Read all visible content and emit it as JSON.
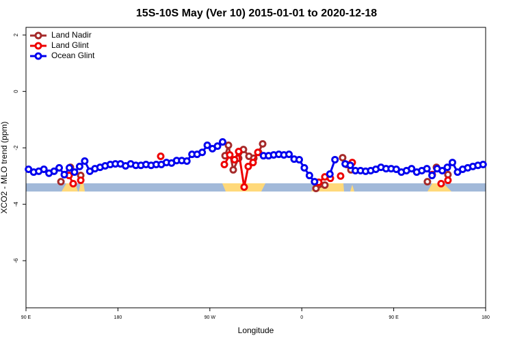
{
  "chart_data": {
    "type": "line",
    "title": "15S-10S May (Ver 10)   2015-01-01 to 2020-12-18",
    "x_label": "Longitude",
    "y_label": "XCO2 - MLO trend (ppm)",
    "xlim": [
      90,
      540
    ],
    "ylim": [
      -7.67,
      2.27
    ],
    "xticks": [
      {
        "value": 90,
        "label": "90 E"
      },
      180,
      {
        "value": 270,
        "label": "90 W"
      },
      {
        "value": 360,
        "label": "0"
      },
      {
        "value": 450,
        "label": "90 E"
      },
      {
        "value": 540,
        "label": "180"
      }
    ],
    "yticks": [
      2,
      0,
      -2,
      -4,
      -6
    ],
    "legend": "top-left",
    "series": [
      {
        "name": "Land Nadir",
        "color": "#a52a2a",
        "x": [
          124.2,
          null,
          133.5,
          null,
          143.6,
          null,
          284.9,
          288.2,
          292.9,
          298.2,
          302.9,
          308.3,
          313.0,
          317.7,
          321.7,
          null,
          373.9,
          382.6,
          null,
          400.0,
          404.0,
          408.1,
          null,
          483.0,
          null,
          491.8,
          null,
          503.1
        ],
        "values": [
          -3.2,
          null,
          -2.69,
          null,
          -2.98,
          null,
          -2.28,
          -1.91,
          -2.78,
          -2.37,
          -2.06,
          -2.3,
          -2.37,
          -2.16,
          -1.86,
          null,
          -3.44,
          -3.32,
          null,
          -2.35,
          -2.59,
          -2.78,
          null,
          -3.2,
          null,
          -2.69,
          null,
          -2.95
        ]
      },
      {
        "name": "Land Glint",
        "color": "#ee0000",
        "x": [
          132.2,
          136.2,
          null,
          143.6,
          null,
          221.9,
          null,
          284.2,
          289.5,
          294.2,
          298.2,
          303.6,
          307.6,
          312.3,
          317.0,
          null,
          376.6,
          382.6,
          388.0,
          null,
          398.0,
          null,
          409.4,
          null,
          487.7,
          null,
          496.4,
          null,
          503.1
        ],
        "values": [
          -2.98,
          -3.27,
          null,
          -3.15,
          null,
          -2.3,
          null,
          -2.59,
          -2.25,
          -2.42,
          -2.13,
          -3.39,
          -2.66,
          -2.52,
          -2.16,
          null,
          -3.22,
          -3.03,
          -3.08,
          null,
          -3.0,
          null,
          -2.52,
          null,
          -2.95,
          null,
          -3.27,
          null,
          -3.15
        ]
      },
      {
        "name": "Ocean Glint",
        "color": "#0000ee",
        "x": [
          92.5,
          97.5,
          102.5,
          107.5,
          112.5,
          117.5,
          122.5,
          127.5,
          132.5,
          137.5,
          142.5,
          147.5,
          152.5,
          157.5,
          162.5,
          167.5,
          172.5,
          177.5,
          182.5,
          187.5,
          192.5,
          197.5,
          202.5,
          207.5,
          212.5,
          217.5,
          222.5,
          227.5,
          232.5,
          237.5,
          242.5,
          247.5,
          252.5,
          257.5,
          262.5,
          267.5,
          272.5,
          277.5,
          282.5,
          null,
          322.5,
          327.5,
          332.5,
          337.5,
          342.5,
          347.5,
          352.5,
          357.5,
          362.5,
          367.5,
          372.5,
          null,
          387.5,
          392.5,
          null,
          402.5,
          407.5,
          412.5,
          417.5,
          422.5,
          427.5,
          432.5,
          437.5,
          442.5,
          447.5,
          452.5,
          457.5,
          462.5,
          467.5,
          472.5,
          477.5,
          482.5,
          487.5,
          492.5,
          497.5,
          502.5,
          507.5,
          512.5,
          517.5,
          522.5,
          527.5,
          532.5,
          537.5
        ],
        "values": [
          -2.76,
          -2.86,
          -2.83,
          -2.76,
          -2.9,
          -2.83,
          -2.71,
          -2.95,
          -2.71,
          -2.86,
          -2.66,
          -2.47,
          -2.83,
          -2.74,
          -2.69,
          -2.64,
          -2.59,
          -2.57,
          -2.57,
          -2.64,
          -2.57,
          -2.62,
          -2.62,
          -2.59,
          -2.62,
          -2.59,
          -2.59,
          -2.52,
          -2.54,
          -2.45,
          -2.45,
          -2.47,
          -2.23,
          -2.23,
          -2.16,
          -1.91,
          -2.03,
          -1.94,
          -1.79,
          null,
          -2.28,
          -2.28,
          -2.25,
          -2.23,
          -2.25,
          -2.23,
          -2.4,
          -2.42,
          -2.71,
          -2.98,
          -3.2,
          null,
          -2.93,
          -2.42,
          null,
          -2.57,
          -2.62,
          -2.81,
          -2.81,
          -2.83,
          -2.81,
          -2.76,
          -2.69,
          -2.74,
          -2.74,
          -2.76,
          -2.86,
          -2.81,
          -2.74,
          -2.86,
          -2.81,
          -2.74,
          -2.98,
          -2.74,
          -2.81,
          -2.69,
          -2.52,
          -2.86,
          -2.76,
          -2.71,
          -2.66,
          -2.62,
          -2.59
        ]
      }
    ]
  }
}
